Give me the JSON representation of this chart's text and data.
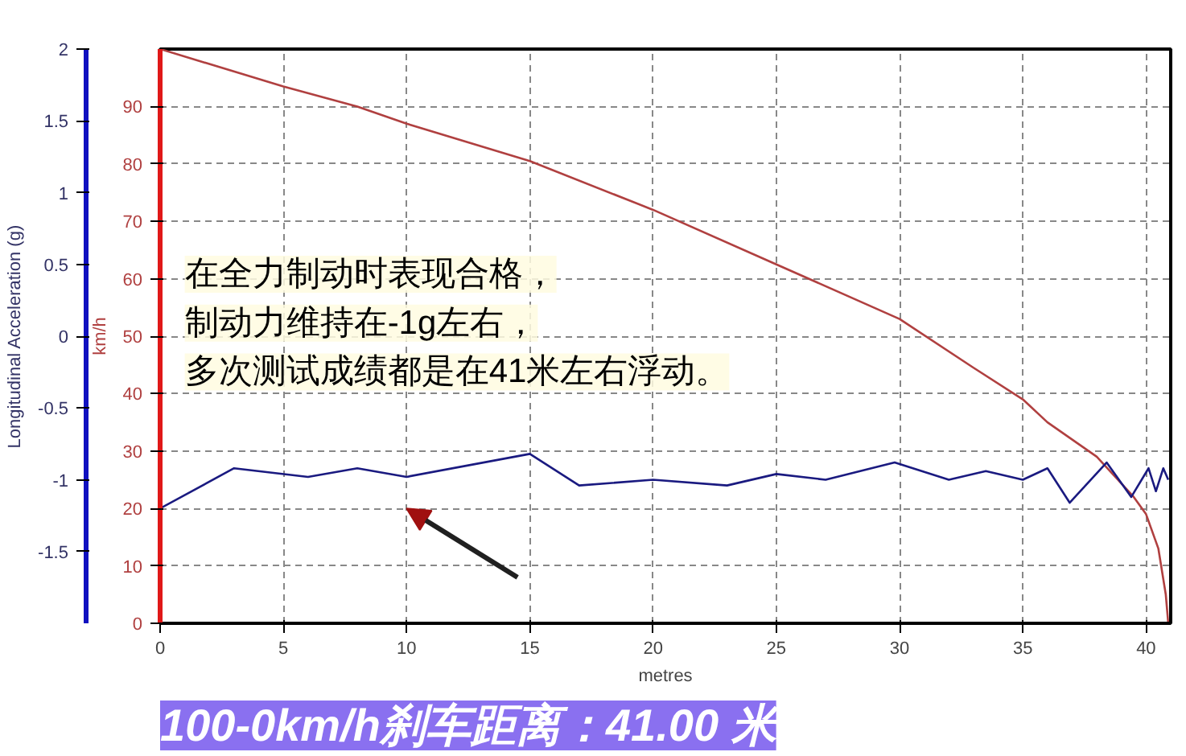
{
  "chart_data": {
    "type": "line",
    "xlabel": "metres",
    "ylabel": "km/h",
    "y2label": "Longitudinal Acceleration (g)",
    "xlim": [
      0,
      41
    ],
    "xticks": [
      0,
      5,
      10,
      15,
      20,
      25,
      30,
      35,
      40
    ],
    "ylim": [
      0,
      100
    ],
    "yticks": [
      0,
      10,
      20,
      30,
      40,
      50,
      60,
      70,
      80,
      90
    ],
    "y2lim": [
      -2,
      2
    ],
    "y2ticks": [
      -1.5,
      -1,
      -0.5,
      0,
      0.5,
      1,
      1.5,
      2
    ],
    "grid": true,
    "marker": "none",
    "line_style": "solid",
    "series": [
      {
        "color": "#b04040",
        "x": [
          0,
          5,
          8,
          10,
          15,
          20,
          25,
          30,
          33,
          35,
          36,
          38,
          39.5,
          40,
          40.5,
          40.8,
          40.9
        ],
        "values": [
          100,
          93.5,
          90,
          87,
          80.5,
          72,
          62.5,
          53,
          44.5,
          39,
          35,
          29,
          22,
          19,
          13,
          5,
          0
        ]
      },
      {
        "color": "#1a1a80",
        "axis": "y2",
        "x": [
          0,
          3,
          6,
          8,
          10,
          15,
          17,
          20,
          23,
          25,
          27,
          29.8,
          32,
          33.5,
          35,
          36,
          36.9,
          38.4,
          39.4,
          40.1,
          40.4,
          40.7,
          40.9
        ],
        "values": [
          -1.2,
          -0.92,
          -0.98,
          -0.92,
          -0.98,
          -0.82,
          -1.04,
          -1.0,
          -1.04,
          -0.96,
          -1.0,
          -0.88,
          -1.0,
          -0.94,
          -1.0,
          -0.92,
          -1.16,
          -0.88,
          -1.12,
          -0.92,
          -1.08,
          -0.92,
          -1.0
        ]
      }
    ],
    "annotations": [
      "在全力制动时表现合格，",
      "制动力维持在-1g左右，",
      "多次测试成绩都是在41米左右浮动。",
      "100-0km/h刹车距离：41.00 米"
    ]
  }
}
